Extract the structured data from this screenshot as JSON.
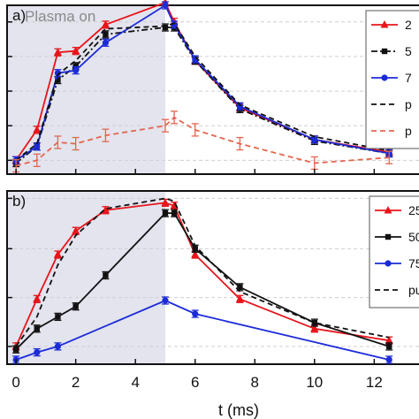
{
  "figure": {
    "xlabel": "t (ms)",
    "shade_label": "Plasma on",
    "shade_range": [
      0,
      5
    ],
    "xlim": [
      -0.3,
      13.5
    ],
    "x_ticks": [
      0,
      2,
      4,
      6,
      8,
      10,
      12
    ]
  },
  "chart_data": [
    {
      "type": "line",
      "panel_label": "a)",
      "ylim": [
        -0.1,
        1.12
      ],
      "grid": "horizontal",
      "legend": {
        "placement": "right",
        "labels": [
          "2",
          "5",
          "7",
          "p",
          "p"
        ]
      },
      "series": [
        {
          "name": "2",
          "color": "#e8141a",
          "line": "solid",
          "marker": "triangle",
          "x": [
            0,
            0.7,
            1.4,
            2,
            3,
            5,
            5.3,
            6,
            7.5,
            10,
            12.5
          ],
          "y": [
            0.0,
            0.22,
            0.78,
            0.79,
            0.98,
            1.14,
            1.0,
            0.72,
            0.38,
            0.15,
            0.06
          ]
        },
        {
          "name": "5",
          "color": "#111111",
          "line": "dash-dot",
          "marker": "square",
          "x": [
            0,
            0.7,
            1.4,
            2,
            3,
            5,
            5.3,
            6,
            7.5,
            10,
            12.5
          ],
          "y": [
            -0.02,
            0.1,
            0.58,
            0.68,
            0.91,
            0.96,
            0.96,
            0.72,
            0.37,
            0.14,
            0.05
          ]
        },
        {
          "name": "7",
          "color": "#1c2bd8",
          "line": "solid",
          "marker": "circle",
          "x": [
            0,
            0.7,
            1.4,
            2,
            3,
            5,
            5.3,
            6,
            7.5,
            10,
            12.5
          ],
          "y": [
            0.0,
            0.1,
            0.63,
            0.65,
            0.85,
            1.12,
            0.98,
            0.73,
            0.39,
            0.15,
            0.05
          ]
        },
        {
          "name": "p",
          "color": "#111111",
          "line": "dashed",
          "marker": "none",
          "x": [
            0,
            0.7,
            1.4,
            2,
            3,
            5,
            5.3,
            6,
            7.5,
            10,
            12.5
          ],
          "y": [
            0.0,
            0.12,
            0.62,
            0.72,
            0.95,
            0.97,
            0.99,
            0.75,
            0.4,
            0.17,
            0.07
          ]
        },
        {
          "name": "p",
          "color": "#e4654e",
          "line": "dashed",
          "marker": "errorbar",
          "x": [
            0,
            0.7,
            1.4,
            2,
            3,
            5,
            5.3,
            6,
            7.5,
            10,
            12.5
          ],
          "y": [
            -0.04,
            0.0,
            0.13,
            0.12,
            0.18,
            0.25,
            0.31,
            0.22,
            0.12,
            -0.02,
            0.02
          ]
        }
      ]
    },
    {
      "type": "line",
      "panel_label": "b)",
      "ylim": [
        -0.12,
        1.05
      ],
      "grid": "horizontal",
      "legend": {
        "placement": "right",
        "labels": [
          "25",
          "50",
          "75",
          "pu"
        ]
      },
      "series": [
        {
          "name": "25",
          "color": "#e8141a",
          "line": "solid",
          "marker": "triangle",
          "x": [
            0,
            0.7,
            1.4,
            2,
            3,
            5,
            5.3,
            6,
            7.5,
            10,
            12.5
          ],
          "y": [
            0.0,
            0.32,
            0.62,
            0.78,
            0.92,
            0.97,
            0.95,
            0.62,
            0.32,
            0.12,
            0.04
          ]
        },
        {
          "name": "50",
          "color": "#111111",
          "line": "solid",
          "marker": "square",
          "x": [
            0,
            0.7,
            1.4,
            2,
            3,
            5,
            5.3,
            6,
            7.5,
            10,
            12.5
          ],
          "y": [
            -0.02,
            0.12,
            0.2,
            0.27,
            0.48,
            0.9,
            0.9,
            0.66,
            0.4,
            0.16,
            0.0
          ]
        },
        {
          "name": "75",
          "color": "#1c2bd8",
          "line": "solid",
          "marker": "circle",
          "x": [
            0,
            0.7,
            1.4,
            5,
            6,
            12.5
          ],
          "y": [
            -0.09,
            -0.04,
            0.0,
            0.31,
            0.22,
            -0.09
          ]
        },
        {
          "name": "pu",
          "color": "#111111",
          "line": "dashed",
          "marker": "none",
          "x": [
            0,
            0.7,
            1.4,
            2,
            3,
            5,
            5.3,
            6,
            7.5,
            10,
            12.5
          ],
          "y": [
            0.0,
            0.2,
            0.55,
            0.75,
            0.93,
            1.0,
            0.98,
            0.68,
            0.37,
            0.16,
            0.06
          ]
        }
      ]
    }
  ]
}
